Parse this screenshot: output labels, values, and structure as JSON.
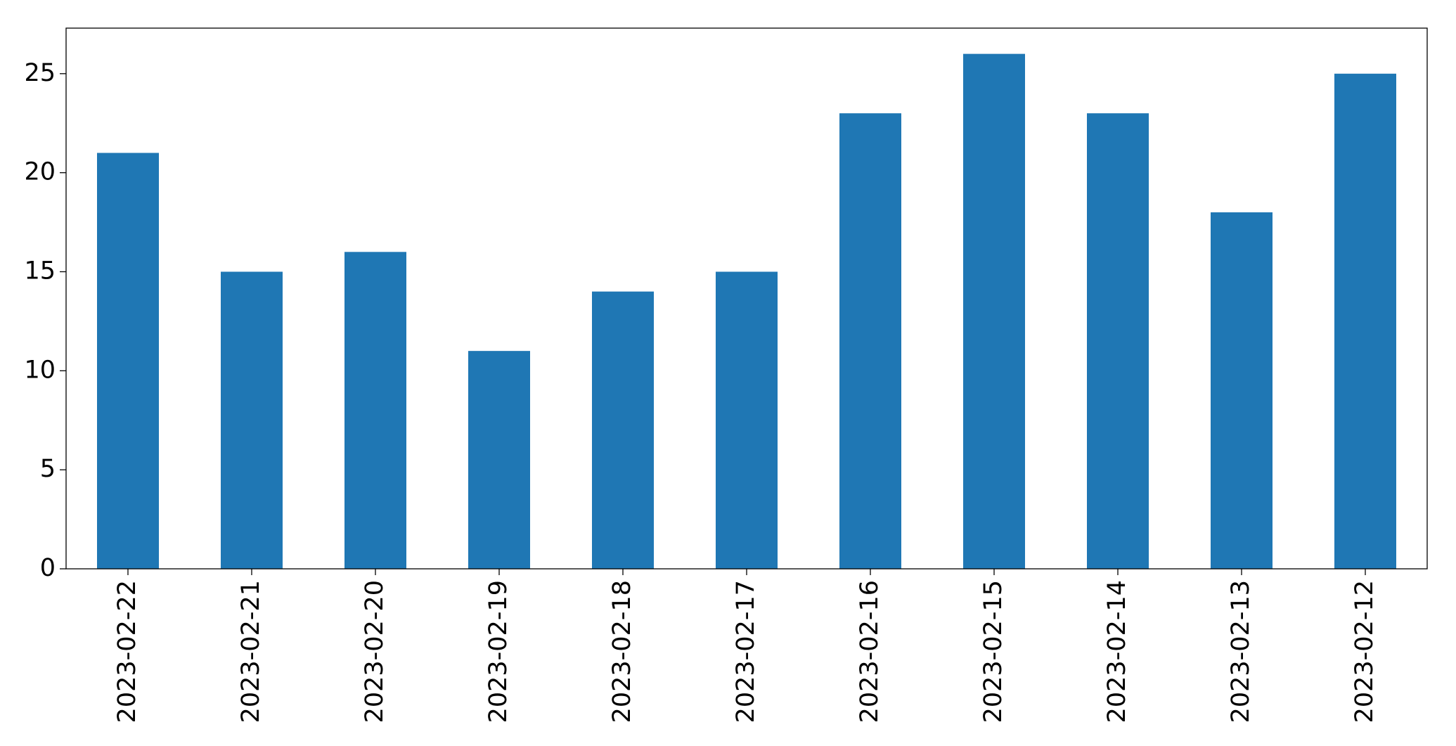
{
  "chart_data": {
    "type": "bar",
    "categories": [
      "2023-02-22",
      "2023-02-21",
      "2023-02-20",
      "2023-02-19",
      "2023-02-18",
      "2023-02-17",
      "2023-02-16",
      "2023-02-15",
      "2023-02-14",
      "2023-02-13",
      "2023-02-12"
    ],
    "values": [
      21,
      15,
      16,
      11,
      14,
      15,
      23,
      26,
      23,
      18,
      25
    ],
    "color": "#1f77b4",
    "ylim": [
      0,
      27.3
    ],
    "yticks": [
      0,
      5,
      10,
      15,
      20,
      25
    ],
    "grid": false
  }
}
